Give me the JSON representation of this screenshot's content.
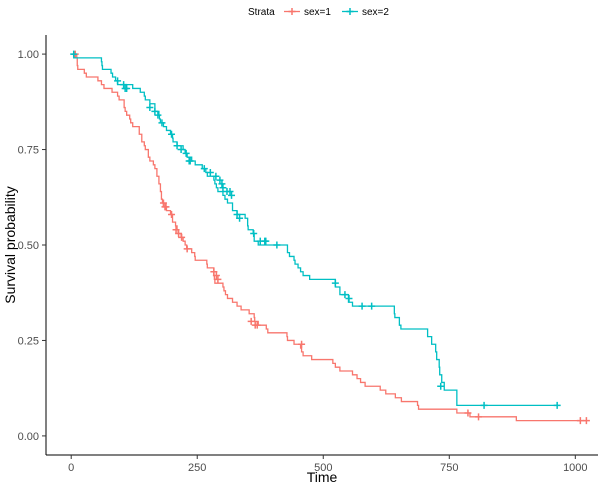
{
  "chart_data": {
    "type": "line",
    "xlabel": "Time",
    "ylabel": "Survival probability",
    "xlim": [
      -50,
      1045
    ],
    "ylim": [
      -0.05,
      1.05
    ],
    "x_ticks": [
      0,
      250,
      500,
      750,
      1000
    ],
    "y_ticks": [
      0.0,
      0.25,
      0.5,
      0.75,
      1.0
    ],
    "y_tick_labels": [
      "0.00",
      "0.25",
      "0.50",
      "0.75",
      "1.00"
    ],
    "grid": false,
    "legend": {
      "title": "Strata",
      "position": "top"
    },
    "series": [
      {
        "name": "sex=1",
        "color": "#F8766D",
        "step": [
          [
            0,
            1.0
          ],
          [
            11,
            0.99
          ],
          [
            12,
            0.97
          ],
          [
            13,
            0.96
          ],
          [
            26,
            0.95
          ],
          [
            30,
            0.94
          ],
          [
            53,
            0.93
          ],
          [
            60,
            0.92
          ],
          [
            65,
            0.91
          ],
          [
            81,
            0.9
          ],
          [
            92,
            0.89
          ],
          [
            95,
            0.88
          ],
          [
            105,
            0.86
          ],
          [
            107,
            0.85
          ],
          [
            110,
            0.84
          ],
          [
            116,
            0.83
          ],
          [
            118,
            0.82
          ],
          [
            122,
            0.81
          ],
          [
            135,
            0.79
          ],
          [
            140,
            0.77
          ],
          [
            145,
            0.76
          ],
          [
            147,
            0.75
          ],
          [
            153,
            0.73
          ],
          [
            156,
            0.72
          ],
          [
            163,
            0.71
          ],
          [
            166,
            0.7
          ],
          [
            170,
            0.68
          ],
          [
            174,
            0.66
          ],
          [
            177,
            0.64
          ],
          [
            179,
            0.62
          ],
          [
            181,
            0.61
          ],
          [
            183,
            0.6
          ],
          [
            189,
            0.59
          ],
          [
            197,
            0.58
          ],
          [
            201,
            0.56
          ],
          [
            207,
            0.55
          ],
          [
            210,
            0.54
          ],
          [
            212,
            0.53
          ],
          [
            218,
            0.52
          ],
          [
            222,
            0.51
          ],
          [
            226,
            0.5
          ],
          [
            229,
            0.49
          ],
          [
            239,
            0.48
          ],
          [
            245,
            0.47
          ],
          [
            246,
            0.46
          ],
          [
            269,
            0.45
          ],
          [
            270,
            0.44
          ],
          [
            283,
            0.42
          ],
          [
            284,
            0.41
          ],
          [
            285,
            0.4
          ],
          [
            301,
            0.39
          ],
          [
            303,
            0.38
          ],
          [
            306,
            0.37
          ],
          [
            310,
            0.36
          ],
          [
            320,
            0.35
          ],
          [
            329,
            0.34
          ],
          [
            337,
            0.33
          ],
          [
            353,
            0.32
          ],
          [
            363,
            0.31
          ],
          [
            364,
            0.3
          ],
          [
            371,
            0.29
          ],
          [
            387,
            0.28
          ],
          [
            390,
            0.27
          ],
          [
            428,
            0.26
          ],
          [
            429,
            0.25
          ],
          [
            442,
            0.24
          ],
          [
            455,
            0.23
          ],
          [
            457,
            0.22
          ],
          [
            460,
            0.21
          ],
          [
            477,
            0.2
          ],
          [
            519,
            0.19
          ],
          [
            524,
            0.18
          ],
          [
            533,
            0.17
          ],
          [
            558,
            0.16
          ],
          [
            567,
            0.15
          ],
          [
            574,
            0.14
          ],
          [
            583,
            0.13
          ],
          [
            613,
            0.12
          ],
          [
            624,
            0.11
          ],
          [
            643,
            0.1
          ],
          [
            655,
            0.09
          ],
          [
            687,
            0.08
          ],
          [
            689,
            0.07
          ],
          [
            707,
            0.07
          ],
          [
            765,
            0.06
          ],
          [
            791,
            0.05
          ],
          [
            814,
            0.05
          ],
          [
            883,
            0.04
          ],
          [
            1022,
            0.04
          ]
        ],
        "censored": [
          [
            8,
            1.0
          ],
          [
            183,
            0.61
          ],
          [
            186,
            0.6
          ],
          [
            188,
            0.6
          ],
          [
            199,
            0.58
          ],
          [
            208,
            0.54
          ],
          [
            213,
            0.53
          ],
          [
            219,
            0.52
          ],
          [
            230,
            0.49
          ],
          [
            283,
            0.43
          ],
          [
            288,
            0.42
          ],
          [
            291,
            0.41
          ],
          [
            357,
            0.3
          ],
          [
            365,
            0.29
          ],
          [
            369,
            0.29
          ],
          [
            457,
            0.24
          ],
          [
            787,
            0.06
          ],
          [
            808,
            0.05
          ],
          [
            1010,
            0.04
          ],
          [
            1022,
            0.04
          ]
        ]
      },
      {
        "name": "sex=2",
        "color": "#00BFC4",
        "step": [
          [
            0,
            1.0
          ],
          [
            5,
            0.99
          ],
          [
            60,
            0.98
          ],
          [
            61,
            0.97
          ],
          [
            62,
            0.96
          ],
          [
            79,
            0.95
          ],
          [
            82,
            0.94
          ],
          [
            88,
            0.93
          ],
          [
            92,
            0.92
          ],
          [
            122,
            0.91
          ],
          [
            137,
            0.9
          ],
          [
            145,
            0.89
          ],
          [
            147,
            0.88
          ],
          [
            156,
            0.87
          ],
          [
            166,
            0.85
          ],
          [
            174,
            0.84
          ],
          [
            175,
            0.83
          ],
          [
            177,
            0.82
          ],
          [
            183,
            0.81
          ],
          [
            189,
            0.8
          ],
          [
            197,
            0.79
          ],
          [
            201,
            0.78
          ],
          [
            202,
            0.77
          ],
          [
            210,
            0.76
          ],
          [
            222,
            0.75
          ],
          [
            226,
            0.74
          ],
          [
            230,
            0.73
          ],
          [
            239,
            0.72
          ],
          [
            246,
            0.71
          ],
          [
            260,
            0.7
          ],
          [
            267,
            0.69
          ],
          [
            270,
            0.68
          ],
          [
            283,
            0.67
          ],
          [
            285,
            0.66
          ],
          [
            288,
            0.65
          ],
          [
            291,
            0.64
          ],
          [
            301,
            0.63
          ],
          [
            305,
            0.62
          ],
          [
            310,
            0.61
          ],
          [
            320,
            0.59
          ],
          [
            329,
            0.58
          ],
          [
            345,
            0.57
          ],
          [
            350,
            0.55
          ],
          [
            351,
            0.54
          ],
          [
            361,
            0.53
          ],
          [
            363,
            0.51
          ],
          [
            371,
            0.5
          ],
          [
            429,
            0.48
          ],
          [
            433,
            0.47
          ],
          [
            442,
            0.46
          ],
          [
            444,
            0.45
          ],
          [
            450,
            0.44
          ],
          [
            455,
            0.43
          ],
          [
            460,
            0.42
          ],
          [
            473,
            0.41
          ],
          [
            524,
            0.39
          ],
          [
            533,
            0.37
          ],
          [
            550,
            0.35
          ],
          [
            558,
            0.34
          ],
          [
            641,
            0.32
          ],
          [
            642,
            0.31
          ],
          [
            651,
            0.29
          ],
          [
            654,
            0.28
          ],
          [
            707,
            0.26
          ],
          [
            715,
            0.24
          ],
          [
            723,
            0.22
          ],
          [
            725,
            0.2
          ],
          [
            730,
            0.18
          ],
          [
            731,
            0.16
          ],
          [
            735,
            0.14
          ],
          [
            740,
            0.12
          ],
          [
            765,
            0.08
          ],
          [
            964,
            0.08
          ]
        ],
        "censored": [
          [
            5,
            1.0
          ],
          [
            92,
            0.93
          ],
          [
            104,
            0.92
          ],
          [
            107,
            0.91
          ],
          [
            110,
            0.91
          ],
          [
            156,
            0.86
          ],
          [
            166,
            0.85
          ],
          [
            172,
            0.84
          ],
          [
            180,
            0.82
          ],
          [
            199,
            0.79
          ],
          [
            210,
            0.76
          ],
          [
            218,
            0.75
          ],
          [
            228,
            0.74
          ],
          [
            234,
            0.72
          ],
          [
            236,
            0.72
          ],
          [
            264,
            0.7
          ],
          [
            276,
            0.69
          ],
          [
            287,
            0.68
          ],
          [
            295,
            0.67
          ],
          [
            299,
            0.66
          ],
          [
            301,
            0.65
          ],
          [
            309,
            0.64
          ],
          [
            315,
            0.64
          ],
          [
            318,
            0.63
          ],
          [
            329,
            0.58
          ],
          [
            334,
            0.57
          ],
          [
            362,
            0.53
          ],
          [
            375,
            0.51
          ],
          [
            384,
            0.51
          ],
          [
            386,
            0.51
          ],
          [
            408,
            0.5
          ],
          [
            524,
            0.4
          ],
          [
            543,
            0.37
          ],
          [
            551,
            0.36
          ],
          [
            577,
            0.34
          ],
          [
            596,
            0.34
          ],
          [
            733,
            0.13
          ],
          [
            819,
            0.08
          ],
          [
            964,
            0.08
          ]
        ]
      }
    ]
  }
}
